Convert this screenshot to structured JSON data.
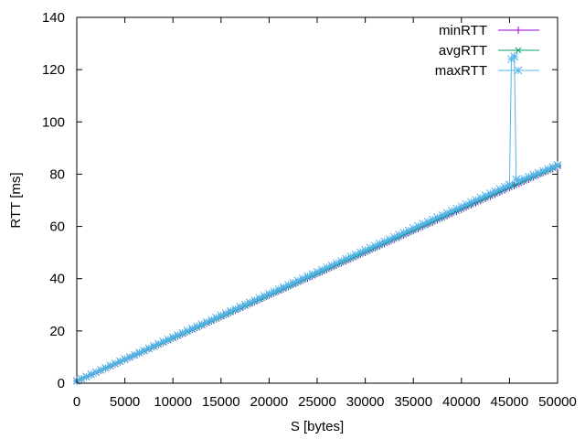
{
  "chart_data": {
    "type": "line",
    "title": "",
    "xlabel": "S [bytes]",
    "ylabel": "RTT [ms]",
    "xlim": [
      0,
      50000
    ],
    "ylim": [
      0,
      140
    ],
    "xticks": [
      "0",
      "5000",
      "10000",
      "15000",
      "20000",
      "25000",
      "30000",
      "35000",
      "40000",
      "45000",
      "50000"
    ],
    "yticks": [
      "0",
      "20",
      "40",
      "60",
      "80",
      "100",
      "120",
      "140"
    ],
    "grid": false,
    "legend_position": "top-right",
    "series": [
      {
        "name": "minRTT",
        "color": "#9400d3",
        "marker": "plus",
        "x": [
          0,
          50000
        ],
        "y": [
          0.8,
          83.0
        ]
      },
      {
        "name": "avgRTT",
        "color": "#009e73",
        "marker": "cross",
        "x": [
          0,
          50000
        ],
        "y": [
          0.8,
          83.2
        ]
      },
      {
        "name": "maxRTT",
        "color": "#56b4e9",
        "marker": "star",
        "x": [
          0,
          45000,
          45200,
          45500,
          45700,
          46000,
          50000
        ],
        "y": [
          0.9,
          76.0,
          124.0,
          125.0,
          78.0,
          77.5,
          83.5
        ]
      }
    ]
  }
}
